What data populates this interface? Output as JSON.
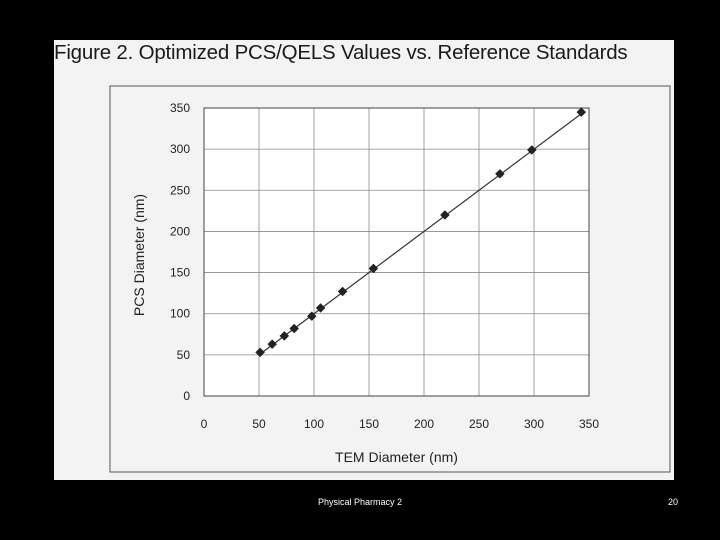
{
  "figure_title": "Figure 2. Optimized PCS/QELS Values vs. Reference Standards",
  "footer": {
    "course": "Physical Pharmacy 2",
    "page_number": "20"
  },
  "colors": {
    "slide_background": "#000000",
    "panel_background": "#f3f3f3",
    "plot_background": "#ffffff",
    "marker": "#222222",
    "line": "#333333",
    "gridline": "#8a8a8a"
  },
  "chart_data": {
    "type": "scatter",
    "title": "Figure 2. Optimized PCS/QELS Values vs. Reference Standards",
    "xlabel": "TEM Diameter (nm)",
    "ylabel": "PCS Diameter (nm)",
    "xlim": [
      0,
      350
    ],
    "ylim": [
      0,
      350
    ],
    "x_ticks": [
      0,
      50,
      100,
      150,
      200,
      250,
      300,
      350
    ],
    "y_ticks": [
      0,
      50,
      100,
      150,
      200,
      250,
      300,
      350
    ],
    "grid": true,
    "legend": false,
    "marker": "diamond",
    "fit_line": {
      "x": [
        50,
        345
      ],
      "y": [
        50,
        345
      ]
    },
    "series": [
      {
        "x": [
          51,
          62,
          73,
          82,
          98,
          106,
          126,
          154,
          219,
          269,
          298,
          343
        ],
        "y": [
          53,
          63,
          73,
          82,
          97,
          107,
          127,
          155,
          220,
          270,
          299,
          345
        ]
      }
    ]
  }
}
